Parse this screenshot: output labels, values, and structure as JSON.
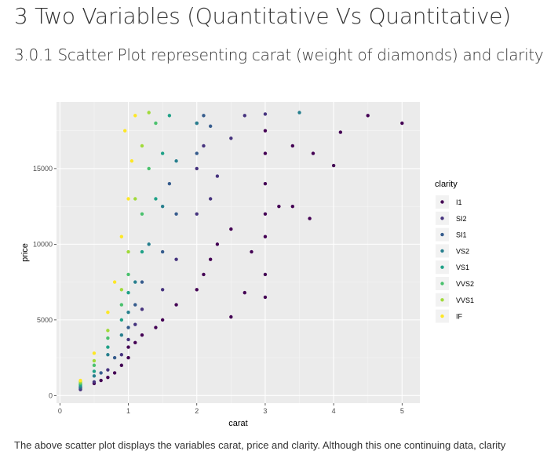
{
  "page": {
    "heading": "3 Two Variables (Quantitative Vs Quantitative)",
    "subheading": "3.0.1 Scatter Plot representing carat (weight of diamonds) and clarity",
    "trailing_text": "The above scatter plot displays the variables carat, price and clarity. Although this one continuing data, clarity"
  },
  "chart_data": {
    "type": "scatter",
    "title": "",
    "xlabel": "carat",
    "ylabel": "price",
    "xlim": [
      -0.05,
      5.26
    ],
    "ylim": [
      -500,
      19400
    ],
    "xticks": [
      0,
      1,
      2,
      3,
      4,
      5
    ],
    "yticks": [
      0,
      5000,
      10000,
      15000
    ],
    "grid": true,
    "legend": {
      "title": "clarity",
      "placement": "right"
    },
    "series": [
      {
        "name": "I1",
        "color": "#440154",
        "points": [
          [
            0.3,
            500
          ],
          [
            0.5,
            800
          ],
          [
            0.6,
            1000
          ],
          [
            0.7,
            1200
          ],
          [
            0.8,
            1500
          ],
          [
            0.9,
            2000
          ],
          [
            1.0,
            2500
          ],
          [
            1.0,
            3200
          ],
          [
            1.1,
            3500
          ],
          [
            1.2,
            4000
          ],
          [
            1.4,
            4500
          ],
          [
            1.5,
            5000
          ],
          [
            1.7,
            6000
          ],
          [
            2.0,
            7000
          ],
          [
            2.1,
            8000
          ],
          [
            2.2,
            9000
          ],
          [
            2.3,
            10000
          ],
          [
            2.5,
            11000
          ],
          [
            3.0,
            6500
          ],
          [
            3.0,
            8000
          ],
          [
            3.0,
            10500
          ],
          [
            3.0,
            12000
          ],
          [
            3.0,
            14000
          ],
          [
            3.0,
            16000
          ],
          [
            3.0,
            17500
          ],
          [
            3.2,
            12500
          ],
          [
            3.4,
            12500
          ],
          [
            3.4,
            16500
          ],
          [
            3.65,
            11700
          ],
          [
            3.7,
            16000
          ],
          [
            4.0,
            15200
          ],
          [
            4.1,
            17400
          ],
          [
            4.5,
            18500
          ],
          [
            5.0,
            18000
          ],
          [
            2.7,
            6800
          ],
          [
            2.5,
            5200
          ],
          [
            2.8,
            9500
          ]
        ]
      },
      {
        "name": "SI2",
        "color": "#46337E",
        "points": [
          [
            0.3,
            400
          ],
          [
            0.5,
            900
          ],
          [
            0.7,
            1700
          ],
          [
            0.9,
            2700
          ],
          [
            1.0,
            3700
          ],
          [
            1.1,
            4700
          ],
          [
            1.2,
            5700
          ],
          [
            1.5,
            7000
          ],
          [
            1.7,
            9000
          ],
          [
            2.0,
            12000
          ],
          [
            2.0,
            15000
          ],
          [
            2.0,
            18000
          ],
          [
            2.1,
            16500
          ],
          [
            2.3,
            14500
          ],
          [
            2.5,
            17000
          ],
          [
            2.7,
            18500
          ],
          [
            3.0,
            18600
          ],
          [
            2.2,
            13000
          ]
        ]
      },
      {
        "name": "SI1",
        "color": "#365C8D",
        "points": [
          [
            0.3,
            500
          ],
          [
            0.6,
            1500
          ],
          [
            0.8,
            2500
          ],
          [
            1.0,
            4500
          ],
          [
            1.1,
            6000
          ],
          [
            1.2,
            7500
          ],
          [
            1.5,
            9500
          ],
          [
            1.7,
            12000
          ],
          [
            2.0,
            16000
          ],
          [
            2.1,
            18500
          ],
          [
            1.6,
            14000
          ],
          [
            2.2,
            17800
          ]
        ]
      },
      {
        "name": "VS2",
        "color": "#277F8E",
        "points": [
          [
            0.3,
            600
          ],
          [
            0.5,
            1300
          ],
          [
            0.7,
            2700
          ],
          [
            0.9,
            4000
          ],
          [
            1.0,
            5500
          ],
          [
            1.1,
            7500
          ],
          [
            1.3,
            10000
          ],
          [
            1.5,
            12500
          ],
          [
            1.7,
            15500
          ],
          [
            2.0,
            18000
          ],
          [
            3.5,
            18700
          ]
        ]
      },
      {
        "name": "VS1",
        "color": "#1FA187",
        "points": [
          [
            0.3,
            700
          ],
          [
            0.5,
            1600
          ],
          [
            0.7,
            3200
          ],
          [
            0.9,
            5000
          ],
          [
            1.0,
            6800
          ],
          [
            1.2,
            9500
          ],
          [
            1.4,
            13000
          ],
          [
            1.5,
            16000
          ],
          [
            1.6,
            18500
          ]
        ]
      },
      {
        "name": "VVS2",
        "color": "#4AC16D",
        "points": [
          [
            0.3,
            800
          ],
          [
            0.5,
            2000
          ],
          [
            0.7,
            3800
          ],
          [
            0.9,
            6000
          ],
          [
            1.0,
            8000
          ],
          [
            1.2,
            12000
          ],
          [
            1.3,
            15000
          ],
          [
            1.4,
            18000
          ]
        ]
      },
      {
        "name": "VVS1",
        "color": "#A0DA39",
        "points": [
          [
            0.3,
            900
          ],
          [
            0.5,
            2300
          ],
          [
            0.7,
            4300
          ],
          [
            0.9,
            7000
          ],
          [
            1.0,
            9500
          ],
          [
            1.1,
            13000
          ],
          [
            1.2,
            16500
          ],
          [
            1.3,
            18700
          ]
        ]
      },
      {
        "name": "IF",
        "color": "#FDE725",
        "points": [
          [
            0.3,
            1000
          ],
          [
            0.5,
            2800
          ],
          [
            0.7,
            5500
          ],
          [
            0.8,
            7500
          ],
          [
            0.9,
            10500
          ],
          [
            1.0,
            13000
          ],
          [
            1.05,
            15500
          ],
          [
            1.1,
            18500
          ],
          [
            0.95,
            17500
          ]
        ]
      }
    ]
  }
}
